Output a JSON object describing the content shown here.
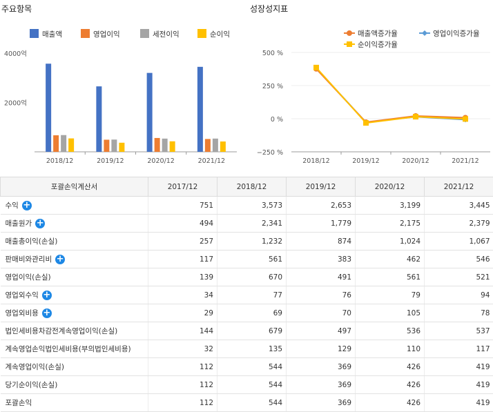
{
  "titles": {
    "left": "주요항목",
    "right": "성장성지표"
  },
  "chart_data": [
    {
      "type": "bar",
      "categories": [
        "2018/12",
        "2019/12",
        "2020/12",
        "2021/12"
      ],
      "series": [
        {
          "name": "매출액",
          "color": "#4472c4",
          "values": [
            3573,
            2653,
            3199,
            3445
          ]
        },
        {
          "name": "영업이익",
          "color": "#ed7d31",
          "values": [
            670,
            491,
            561,
            521
          ]
        },
        {
          "name": "세전이익",
          "color": "#a5a5a5",
          "values": [
            679,
            497,
            536,
            537
          ]
        },
        {
          "name": "순이익",
          "color": "#ffc000",
          "values": [
            544,
            369,
            426,
            419
          ]
        }
      ],
      "yticks": [
        2000,
        4000
      ],
      "ytick_labels": [
        "2000억",
        "4000억"
      ],
      "ylim": [
        0,
        4000
      ]
    },
    {
      "type": "line",
      "categories": [
        "2018/12",
        "2019/12",
        "2020/12",
        "2021/12"
      ],
      "series": [
        {
          "name": "매출액증가율",
          "color": "#ed7d31",
          "marker": "circle",
          "values": [
            376,
            -26,
            21,
            8
          ]
        },
        {
          "name": "영업이익증가율",
          "color": "#5b9bd5",
          "marker": "diamond",
          "values": [
            382,
            -27,
            14,
            -7
          ]
        },
        {
          "name": "순이익증가율",
          "color": "#ffc000",
          "marker": "square",
          "values": [
            386,
            -32,
            15,
            -2
          ]
        }
      ],
      "yticks": [
        500,
        250,
        0,
        -250
      ],
      "ytick_labels": [
        "500 %",
        "250 %",
        "0 %",
        "−250 %"
      ],
      "ylim": [
        -250,
        500
      ]
    }
  ],
  "table": {
    "headers": [
      "포괄손익계산서",
      "2017/12",
      "2018/12",
      "2019/12",
      "2020/12",
      "2021/12"
    ],
    "rows": [
      {
        "label": "수익",
        "expand": true,
        "values": [
          "751",
          "3,573",
          "2,653",
          "3,199",
          "3,445"
        ]
      },
      {
        "label": "매출원가",
        "expand": true,
        "values": [
          "494",
          "2,341",
          "1,779",
          "2,175",
          "2,379"
        ]
      },
      {
        "label": "매출총이익(손실)",
        "expand": false,
        "values": [
          "257",
          "1,232",
          "874",
          "1,024",
          "1,067"
        ]
      },
      {
        "label": "판매비와관리비",
        "expand": true,
        "values": [
          "117",
          "561",
          "383",
          "462",
          "546"
        ]
      },
      {
        "label": "영업이익(손실)",
        "expand": false,
        "values": [
          "139",
          "670",
          "491",
          "561",
          "521"
        ]
      },
      {
        "label": "영업외수익",
        "expand": true,
        "values": [
          "34",
          "77",
          "76",
          "79",
          "94"
        ]
      },
      {
        "label": "영업외비용",
        "expand": true,
        "values": [
          "29",
          "69",
          "70",
          "105",
          "78"
        ]
      },
      {
        "label": "법인세비용차감전계속영업이익(손실)",
        "expand": false,
        "values": [
          "144",
          "679",
          "497",
          "536",
          "537"
        ]
      },
      {
        "label": "계속영업손익법인세비용(부의법인세비용)",
        "expand": false,
        "values": [
          "32",
          "135",
          "129",
          "110",
          "117"
        ]
      },
      {
        "label": "계속영업이익(손실)",
        "expand": false,
        "values": [
          "112",
          "544",
          "369",
          "426",
          "419"
        ]
      },
      {
        "label": "당기순이익(손실)",
        "expand": false,
        "values": [
          "112",
          "544",
          "369",
          "426",
          "419"
        ]
      },
      {
        "label": "포괄손익",
        "expand": false,
        "values": [
          "112",
          "544",
          "369",
          "426",
          "419"
        ]
      }
    ]
  }
}
